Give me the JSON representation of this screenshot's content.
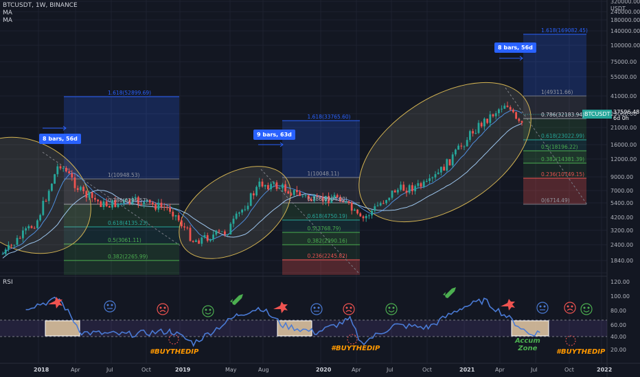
{
  "header": {
    "symbol": "BTCUSDT, 1W, BINANCE",
    "ind1": "MA",
    "ind2": "MA",
    "currency": "USDT"
  },
  "rsi_label": "RSI",
  "price_badge": {
    "symbol": "BTCUSDT",
    "last": "37596.48",
    "countdown": "6d 0h"
  },
  "tags": [
    "8 bars, 56d",
    "9 bars, 63d",
    "8 bars, 56d"
  ],
  "notes": {
    "buy1": "#BUYTHEDIP",
    "buy2": "#BUYTHEDIP",
    "buy3": "#BUYTHEDIP",
    "accum1": "Accum",
    "accum2": "Zone"
  },
  "fib_sets": [
    {
      "levels": [
        "1.618(52899.69)",
        "1(10948.53)",
        "0.786(6296.57)",
        "0.618(4135.23)",
        "0.5(3061.11)",
        "0.382(2265.99)"
      ]
    },
    {
      "levels": [
        "1.618(33765.60)",
        "1(10048.11)",
        "0.786(6904.00)",
        "0.618(4750.19)",
        "0.5(3768.79)",
        "0.382(2990.16)",
        "0.236(2245.82)"
      ]
    },
    {
      "levels": [
        "1.618(169082.45)",
        "1(49311.66)",
        "0.786(32183.94)",
        "0.618(23022.99)",
        "0.5(18196.22)",
        "0.382(14381.39)",
        "0.236(10749.15)",
        "0(6714.49)"
      ]
    }
  ],
  "price_axis": [
    "320000.00",
    "240000.00",
    "180000.00",
    "140000.00",
    "100000.00",
    "75000.00",
    "55000.00",
    "41000.00",
    "29000.00",
    "21000.00",
    "16000.00",
    "12000.00",
    "9000.00",
    "7000.00",
    "5400.00",
    "4200.00",
    "3200.00",
    "2400.00",
    "1840.00"
  ],
  "rsi_axis": [
    "120.00",
    "100.00",
    "80.00",
    "60.00",
    "40.00",
    "20.00"
  ],
  "time_axis": [
    {
      "label": "2018",
      "bold": true
    },
    {
      "label": "Apr",
      "bold": false
    },
    {
      "label": "Jul",
      "bold": false
    },
    {
      "label": "Oct",
      "bold": false
    },
    {
      "label": "2019",
      "bold": true
    },
    {
      "label": "May",
      "bold": false
    },
    {
      "label": "Aug",
      "bold": false
    },
    {
      "label": "2020",
      "bold": true
    },
    {
      "label": "Apr",
      "bold": false
    },
    {
      "label": "Jul",
      "bold": false
    },
    {
      "label": "Oct",
      "bold": false
    },
    {
      "label": "2021",
      "bold": true
    },
    {
      "label": "Apr",
      "bold": false
    },
    {
      "label": "Jul",
      "bold": false
    },
    {
      "label": "Oct",
      "bold": false
    },
    {
      "label": "2022",
      "bold": true
    }
  ],
  "colors": {
    "background": "#131722",
    "up": "#26a69a",
    "down": "#ef5350",
    "rsi_line": "#4a7bd6",
    "ellipse": "#e5c07b",
    "fib_blue": "#2962ff",
    "tag": "#2962ff"
  },
  "chart_data": {
    "type": "line",
    "title": "BTCUSDT, 1W, BINANCE",
    "price_scale": "log",
    "ylim": [
      1840,
      320000
    ],
    "x_range": [
      "2017-07",
      "2022-01"
    ],
    "price_series": {
      "name": "BTCUSDT",
      "x": [
        "2017-07",
        "2017-10",
        "2017-12",
        "2018-02",
        "2018-04",
        "2018-07",
        "2018-10",
        "2018-12",
        "2019-03",
        "2019-06",
        "2019-08",
        "2019-11",
        "2020-01",
        "2020-03",
        "2020-06",
        "2020-09",
        "2020-11",
        "2021-01",
        "2021-04",
        "2021-05",
        "2021-06"
      ],
      "values": [
        2500,
        5000,
        17000,
        9000,
        7000,
        7500,
        6400,
        3300,
        4000,
        11000,
        10000,
        7500,
        8500,
        5000,
        9500,
        10700,
        18000,
        33000,
        60000,
        38000,
        37596
      ]
    },
    "rsi_series": {
      "name": "RSI",
      "ylim": [
        0,
        120
      ],
      "x": [
        "2017-09",
        "2017-12",
        "2018-02",
        "2018-06",
        "2018-10",
        "2018-12",
        "2019-04",
        "2019-06",
        "2019-08",
        "2019-11",
        "2020-02",
        "2020-03",
        "2020-06",
        "2020-09",
        "2020-12",
        "2021-02",
        "2021-04",
        "2021-06",
        "2021-07"
      ],
      "values": [
        80,
        92,
        45,
        42,
        47,
        30,
        70,
        80,
        55,
        45,
        63,
        30,
        55,
        52,
        80,
        90,
        68,
        43,
        45
      ]
    }
  }
}
